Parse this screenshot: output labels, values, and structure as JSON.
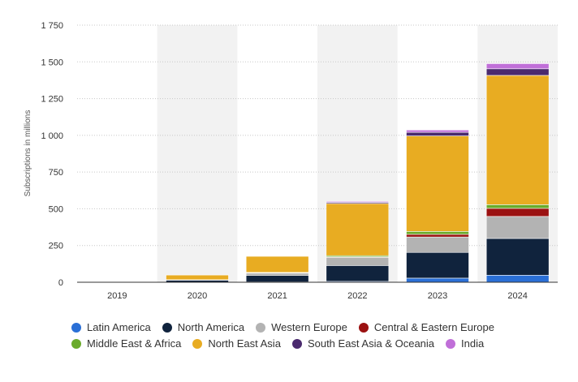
{
  "chart_data": {
    "type": "bar",
    "stacked": true,
    "title": "",
    "xlabel": "",
    "ylabel": "Subscriptions in millions",
    "ylim": [
      0,
      1750
    ],
    "yticks": [
      0,
      250,
      500,
      750,
      1000,
      1250,
      1500,
      1750
    ],
    "ytick_labels": [
      "0",
      "250",
      "500",
      "750",
      "1 000",
      "1 250",
      "1 500",
      "1 750"
    ],
    "grid": true,
    "legend_position": "bottom",
    "categories": [
      "2019",
      "2020",
      "2021",
      "2022",
      "2023",
      "2024"
    ],
    "series": [
      {
        "name": "Latin America",
        "color": "#2a6fd6",
        "values": [
          0,
          0,
          2,
          6,
          28,
          48
        ]
      },
      {
        "name": "North America",
        "color": "#10233d",
        "values": [
          0,
          14,
          45,
          108,
          175,
          250
        ]
      },
      {
        "name": "Western Europe",
        "color": "#b3b3b3",
        "values": [
          0,
          3,
          15,
          55,
          105,
          150
        ]
      },
      {
        "name": "Central & Eastern Europe",
        "color": "#9b1111",
        "values": [
          0,
          0,
          2,
          4,
          18,
          55
        ]
      },
      {
        "name": "Middle East & Africa",
        "color": "#6aab2b",
        "values": [
          0,
          0,
          3,
          8,
          20,
          25
        ]
      },
      {
        "name": "North East Asia",
        "color": "#e8ac22",
        "values": [
          0,
          32,
          110,
          355,
          650,
          880
        ]
      },
      {
        "name": "South East Asia & Oceania",
        "color": "#4a2a6e",
        "values": [
          0,
          0,
          3,
          8,
          25,
          45
        ]
      },
      {
        "name": "India",
        "color": "#c06fd8",
        "values": [
          0,
          0,
          2,
          6,
          15,
          35
        ]
      }
    ],
    "shaded_columns": [
      1,
      3,
      5
    ],
    "colors": {
      "band": "#f2f2f2",
      "grid": "#c8c8c8",
      "axis": "#333333"
    }
  }
}
